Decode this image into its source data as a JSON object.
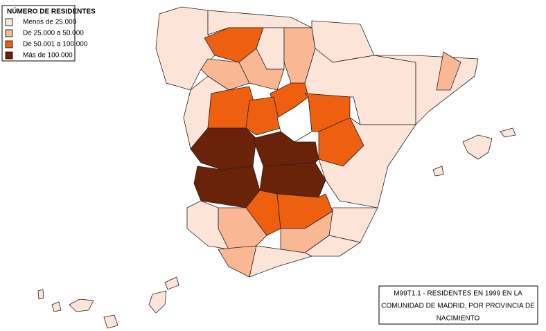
{
  "legend": {
    "title": "NÚMERO DE RESIDENTES",
    "items": [
      {
        "label": "Menos de 25.000",
        "color": "#fde4d9"
      },
      {
        "label": "De 25.000 a 50.000",
        "color": "#f9b793"
      },
      {
        "label": "De 50.001 a 100.000",
        "color": "#ee6010"
      },
      {
        "label": "Más de 100.000",
        "color": "#6a2208"
      }
    ]
  },
  "caption": {
    "lines": [
      "M99T1.1 - RESIDENTES EN 1999 EN  LA",
      "COMUNIDAD DE MADRID, POR PROVINCIA DE",
      "NACIMIENTO"
    ]
  }
}
